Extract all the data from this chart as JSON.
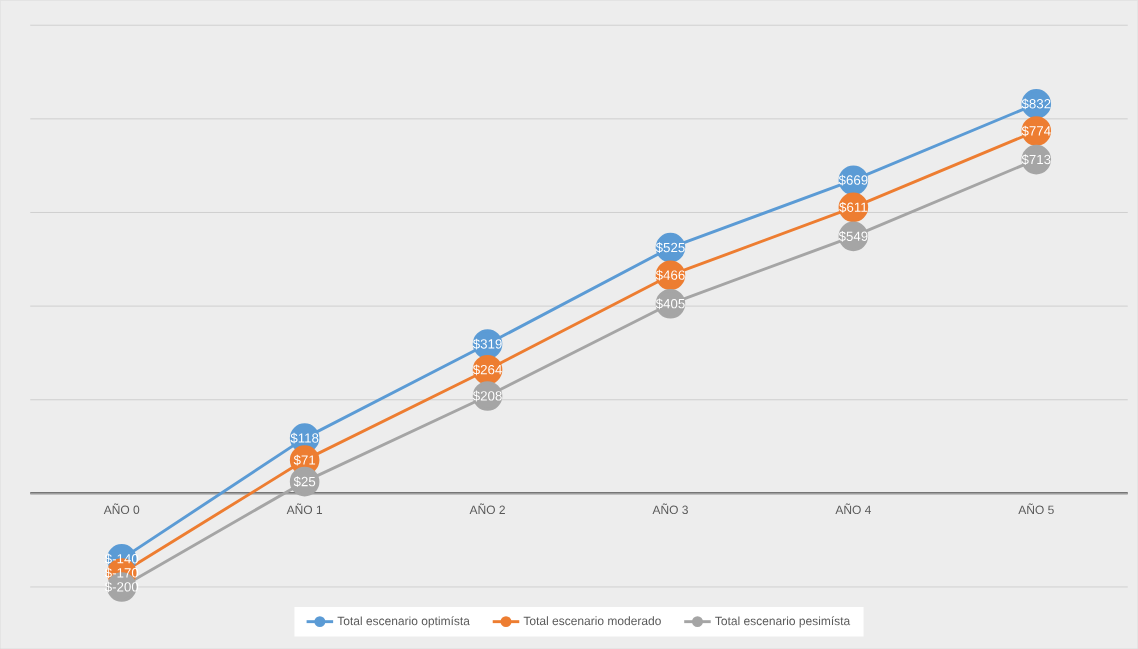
{
  "chart_data": {
    "type": "line",
    "categories": [
      "AÑO 0",
      "AÑO 1",
      "AÑO 2",
      "AÑO 3",
      "AÑO 4",
      "AÑO 5"
    ],
    "series": [
      {
        "name": "Total escenario optimísta",
        "color": "#5b9bd5",
        "values": [
          -140,
          118,
          319,
          525,
          669,
          832
        ],
        "value_labels": [
          "$-140",
          "$118",
          "$319",
          "$525",
          "$669",
          "$832"
        ]
      },
      {
        "name": "Total escenario moderado",
        "color": "#ed7d31",
        "values": [
          -170,
          71,
          264,
          466,
          611,
          774
        ],
        "value_labels": [
          "$-170",
          "$71",
          "$264",
          "$466",
          "$611",
          "$774"
        ]
      },
      {
        "name": "Total escenario pesimísta",
        "color": "#a5a5a5",
        "values": [
          -200,
          25,
          208,
          405,
          549,
          713
        ],
        "value_labels": [
          "$-200",
          "$25",
          "$208",
          "$405",
          "$549",
          "$713"
        ]
      }
    ],
    "ylim": [
      -200,
      1000
    ],
    "yticks": [
      {
        "value": -200,
        "label": null
      },
      {
        "value": 0,
        "label": null
      },
      {
        "value": 200,
        "label": null
      },
      {
        "value": 400,
        "label": null
      },
      {
        "value": 600,
        "label": null
      },
      {
        "value": 800,
        "label": null
      },
      {
        "value": 1000,
        "label": null
      }
    ],
    "grid": "y",
    "legend": "bottom",
    "tick_labels": "x",
    "marker": "circle",
    "line_style": "solid"
  }
}
